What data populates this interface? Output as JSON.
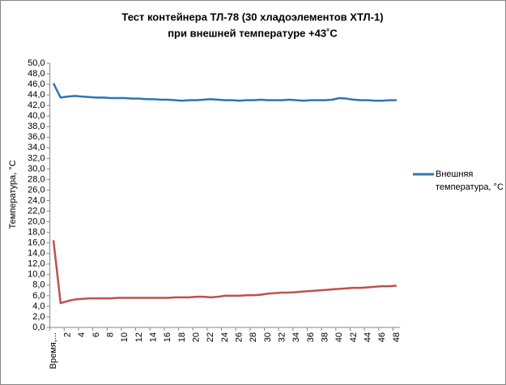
{
  "chart_data": {
    "type": "line",
    "title": [
      "Тест контейнера ТЛ-78 (30 хладоэлементов ХТЛ-1)",
      "при внешней температуре +43˚С"
    ],
    "y_label": "Температура, °С",
    "categories": [
      "Время,...",
      null,
      "2",
      null,
      "4",
      null,
      "6",
      null,
      "8",
      null,
      "10",
      null,
      "12",
      null,
      "14",
      null,
      "16",
      null,
      "18",
      null,
      "20",
      null,
      "22",
      null,
      "24",
      null,
      "26",
      null,
      "28",
      null,
      "30",
      null,
      "32",
      null,
      "34",
      null,
      "36",
      null,
      "38",
      null,
      "40",
      null,
      "42",
      null,
      "44",
      null,
      "46",
      null,
      "48"
    ],
    "series": [
      {
        "name": "Внешняя температура, °С",
        "color": "#2e75b6",
        "values": [
          46.2,
          43.5,
          43.7,
          43.8,
          43.7,
          43.6,
          43.5,
          43.5,
          43.4,
          43.4,
          43.4,
          43.3,
          43.3,
          43.2,
          43.2,
          43.1,
          43.1,
          43.0,
          42.9,
          43.0,
          43.0,
          43.1,
          43.2,
          43.1,
          43.0,
          43.0,
          42.9,
          43.0,
          43.0,
          43.1,
          43.0,
          43.0,
          43.0,
          43.1,
          43.0,
          42.9,
          43.0,
          43.0,
          43.0,
          43.1,
          43.4,
          43.3,
          43.1,
          43.0,
          43.0,
          42.9,
          42.9,
          43.0,
          43.0
        ]
      },
      {
        "color": "#c0504d",
        "values": [
          16.5,
          4.6,
          5.0,
          5.3,
          5.4,
          5.5,
          5.5,
          5.5,
          5.5,
          5.6,
          5.6,
          5.6,
          5.6,
          5.6,
          5.6,
          5.6,
          5.6,
          5.7,
          5.7,
          5.7,
          5.8,
          5.8,
          5.7,
          5.8,
          6.0,
          6.0,
          6.0,
          6.1,
          6.1,
          6.2,
          6.4,
          6.5,
          6.6,
          6.6,
          6.7,
          6.8,
          6.9,
          7.0,
          7.1,
          7.2,
          7.3,
          7.4,
          7.5,
          7.5,
          7.6,
          7.7,
          7.8,
          7.8,
          7.9
        ]
      }
    ],
    "ylim": [
      0,
      50
    ],
    "yticks": [
      {
        "value": 0,
        "label": "0,0"
      },
      {
        "value": 2,
        "label": "2,0"
      },
      {
        "value": 4,
        "label": "4,0"
      },
      {
        "value": 6,
        "label": "6,0"
      },
      {
        "value": 8,
        "label": "8,0"
      },
      {
        "value": 10,
        "label": "10,0"
      },
      {
        "value": 12,
        "label": "12,0"
      },
      {
        "value": 14,
        "label": "14,0"
      },
      {
        "value": 16,
        "label": "16,0"
      },
      {
        "value": 18,
        "label": "18,0"
      },
      {
        "value": 20,
        "label": "20,0"
      },
      {
        "value": 22,
        "label": "22,0"
      },
      {
        "value": 24,
        "label": "24,0"
      },
      {
        "value": 26,
        "label": "26,0"
      },
      {
        "value": 28,
        "label": "28,0"
      },
      {
        "value": 30,
        "label": "30,0"
      },
      {
        "value": 32,
        "label": "32,0"
      },
      {
        "value": 34,
        "label": "34,0"
      },
      {
        "value": 36,
        "label": "36,0"
      },
      {
        "value": 38,
        "label": "38,0"
      },
      {
        "value": 40,
        "label": "40,0"
      },
      {
        "value": 42,
        "label": "42,0"
      },
      {
        "value": 44,
        "label": "44,0"
      },
      {
        "value": 46,
        "label": "46,0"
      },
      {
        "value": 48,
        "label": "48,0"
      },
      {
        "value": 50,
        "label": "50,0"
      }
    ],
    "grid": false
  }
}
